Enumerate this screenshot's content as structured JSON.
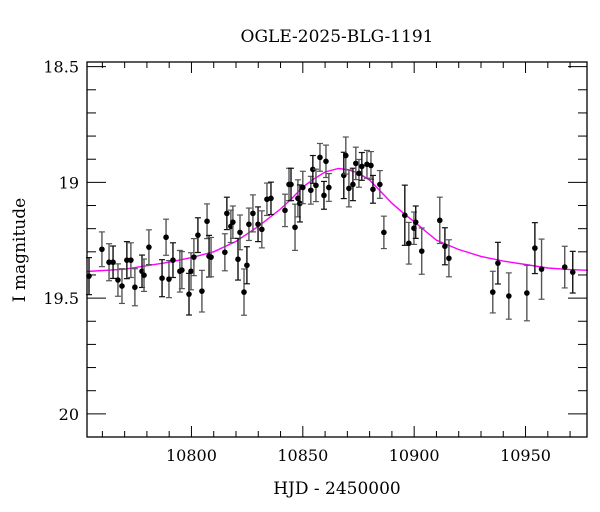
{
  "chart_data": {
    "type": "scatter",
    "title": "OGLE-2025-BLG-1191",
    "xlabel": "HJD - 2450000",
    "ylabel": "I magnitude",
    "xlim": [
      10753.1,
      10977.6
    ],
    "ylim": [
      18.48,
      20.1
    ],
    "y_inverted": true,
    "x_major_ticks": [
      10800,
      10850,
      10900,
      10950
    ],
    "x_tick_labels": [
      "10800",
      "10850",
      "10900",
      "10950"
    ],
    "x_minor_step": 10,
    "y_major_ticks": [
      18.5,
      19,
      19.5,
      20
    ],
    "y_tick_labels": [
      "18.5",
      "19",
      "19.5",
      "20"
    ],
    "y_minor_step": 0.1,
    "grid": false,
    "colors": {
      "points": "#000000",
      "errorbars": "#555555",
      "model": "#ff00ff"
    },
    "observations": {
      "x": [
        10754.0,
        10759.8,
        10763.0,
        10764.8,
        10767.0,
        10768.8,
        10771.0,
        10772.8,
        10774.6,
        10777.8,
        10778.7,
        10780.9,
        10786.8,
        10788.6,
        10789.9,
        10791.7,
        10794.8,
        10795.7,
        10798.9,
        10799.8,
        10801.1,
        10802.9,
        10804.7,
        10807.0,
        10807.9,
        10808.8,
        10815.0,
        10815.9,
        10817.7,
        10818.6,
        10820.9,
        10821.8,
        10823.6,
        10824.9,
        10825.8,
        10827.6,
        10829.9,
        10831.6,
        10833.9,
        10835.7,
        10842.0,
        10843.8,
        10844.7,
        10846.5,
        10847.8,
        10848.7,
        10850.0,
        10853.6,
        10854.5,
        10855.9,
        10857.7,
        10859.5,
        10860.4,
        10861.7,
        10868.4,
        10869.3,
        10870.7,
        10872.5,
        10873.8,
        10875.2,
        10876.5,
        10878.8,
        10880.6,
        10881.5,
        10884.6,
        10886.4,
        10895.8,
        10897.6,
        10899.9,
        10900.7,
        10903.4,
        10911.5,
        10913.8,
        10915.6,
        10935.3,
        10937.6,
        10942.5,
        10950.6,
        10954.2,
        10957.2,
        10967.6,
        10971.2
      ],
      "y": [
        19.405,
        19.289,
        19.345,
        19.345,
        19.422,
        19.448,
        19.336,
        19.336,
        19.453,
        19.384,
        19.401,
        19.28,
        19.414,
        19.237,
        19.418,
        19.336,
        19.384,
        19.379,
        19.483,
        19.384,
        19.323,
        19.228,
        19.47,
        19.168,
        19.319,
        19.323,
        19.302,
        19.134,
        19.19,
        19.172,
        19.332,
        19.216,
        19.474,
        19.358,
        19.181,
        19.134,
        19.181,
        19.203,
        19.073,
        19.069,
        19.121,
        19.009,
        19.009,
        19.194,
        19.069,
        19.091,
        19.022,
        19.034,
        18.944,
        19.013,
        18.892,
        19.056,
        18.909,
        19.022,
        18.97,
        18.884,
        19.026,
        19.009,
        18.918,
        18.961,
        18.931,
        18.922,
        18.927,
        19.03,
        19.009,
        19.216,
        19.142,
        19.263,
        19.198,
        19.172,
        19.297,
        19.164,
        19.276,
        19.328,
        19.474,
        19.349,
        19.491,
        19.478,
        19.284,
        19.375,
        19.366,
        19.388
      ],
      "yerr": [
        0.08,
        0.075,
        0.08,
        0.07,
        0.07,
        0.075,
        0.08,
        0.075,
        0.08,
        0.07,
        0.07,
        0.075,
        0.08,
        0.078,
        0.08,
        0.075,
        0.09,
        0.08,
        0.09,
        0.08,
        0.08,
        0.075,
        0.09,
        0.075,
        0.09,
        0.085,
        0.08,
        0.07,
        0.07,
        0.07,
        0.09,
        0.075,
        0.1,
        0.08,
        0.07,
        0.08,
        0.075,
        0.08,
        0.07,
        0.07,
        0.07,
        0.07,
        0.07,
        0.1,
        0.08,
        0.08,
        0.07,
        0.06,
        0.06,
        0.07,
        0.06,
        0.06,
        0.07,
        0.06,
        0.1,
        0.08,
        0.08,
        0.07,
        0.07,
        0.06,
        0.06,
        0.06,
        0.06,
        0.06,
        0.06,
        0.07,
        0.13,
        0.09,
        0.07,
        0.07,
        0.1,
        0.1,
        0.08,
        0.08,
        0.09,
        0.09,
        0.1,
        0.12,
        0.11,
        0.13,
        0.09,
        0.09
      ]
    },
    "model_curve": {
      "x": [
        10753,
        10770,
        10780,
        10790,
        10800,
        10810,
        10820,
        10830,
        10840,
        10845,
        10850,
        10855,
        10860,
        10866,
        10870,
        10875,
        10880,
        10885,
        10890,
        10896,
        10900,
        10905,
        10910,
        10915,
        10920,
        10930,
        10940,
        10950,
        10960,
        10970,
        10978
      ],
      "y": [
        19.385,
        19.375,
        19.36,
        19.345,
        19.325,
        19.3,
        19.255,
        19.19,
        19.115,
        19.07,
        19.02,
        18.985,
        18.955,
        18.94,
        18.945,
        18.96,
        18.99,
        19.04,
        19.09,
        19.14,
        19.17,
        19.21,
        19.25,
        19.27,
        19.29,
        19.32,
        19.34,
        19.355,
        19.37,
        19.377,
        19.38
      ]
    }
  }
}
